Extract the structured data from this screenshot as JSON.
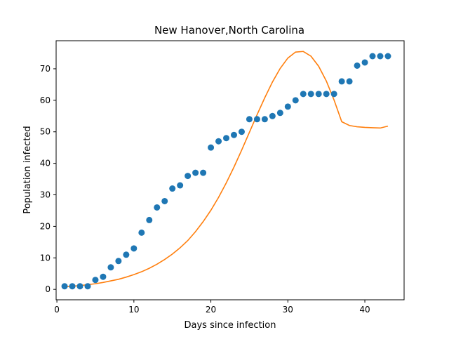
{
  "chart_data": {
    "type": "scatter",
    "title": "New Hanover,North Carolina",
    "xlabel": "Days since infection",
    "ylabel": "Population infected",
    "xlim": [
      -0.1,
      45.1
    ],
    "ylim": [
      -3.3,
      78.9
    ],
    "xticks": [
      0,
      10,
      20,
      30,
      40
    ],
    "yticks": [
      0,
      10,
      20,
      30,
      40,
      50,
      60,
      70
    ],
    "grid": false,
    "series": [
      {
        "kind": "scatter",
        "color": "#1f77b4",
        "x": [
          1,
          2,
          3,
          4,
          5,
          6,
          7,
          8,
          9,
          10,
          11,
          12,
          13,
          14,
          15,
          16,
          17,
          18,
          19,
          20,
          21,
          22,
          23,
          24,
          25,
          26,
          27,
          28,
          29,
          30,
          31,
          32,
          33,
          34,
          35,
          36,
          37,
          38,
          39,
          40,
          41,
          42,
          43
        ],
        "y": [
          1,
          1,
          1,
          1,
          3,
          4,
          7,
          9,
          11,
          13,
          18,
          22,
          26,
          28,
          32,
          33,
          36,
          37,
          37,
          45,
          47,
          48,
          49,
          50,
          54,
          54,
          54,
          55,
          56,
          58,
          60,
          62,
          62,
          62,
          62,
          62,
          66,
          66,
          71,
          72,
          74,
          74,
          74
        ]
      },
      {
        "kind": "line",
        "color": "#ff7f0e",
        "x": [
          1,
          2,
          3,
          4,
          5,
          6,
          7,
          8,
          9,
          10,
          11,
          12,
          13,
          14,
          15,
          16,
          17,
          18,
          19,
          20,
          21,
          22,
          23,
          24,
          25,
          26,
          27,
          28,
          29,
          30,
          31,
          32,
          33,
          34,
          35,
          36,
          37,
          38,
          39,
          40,
          41,
          42,
          43
        ],
        "y": [
          0.8,
          1.0,
          1.2,
          1.5,
          1.8,
          2.2,
          2.7,
          3.2,
          3.9,
          4.7,
          5.6,
          6.7,
          8.0,
          9.5,
          11.2,
          13.2,
          15.5,
          18.3,
          21.5,
          25.1,
          29.2,
          33.8,
          38.8,
          44.2,
          49.8,
          55.4,
          60.8,
          65.8,
          70.1,
          73.4,
          75.3,
          75.5,
          74.0,
          70.8,
          66.1,
          60.1,
          53.2,
          52.0,
          51.6,
          51.4,
          51.3,
          51.2,
          51.8
        ]
      }
    ]
  }
}
